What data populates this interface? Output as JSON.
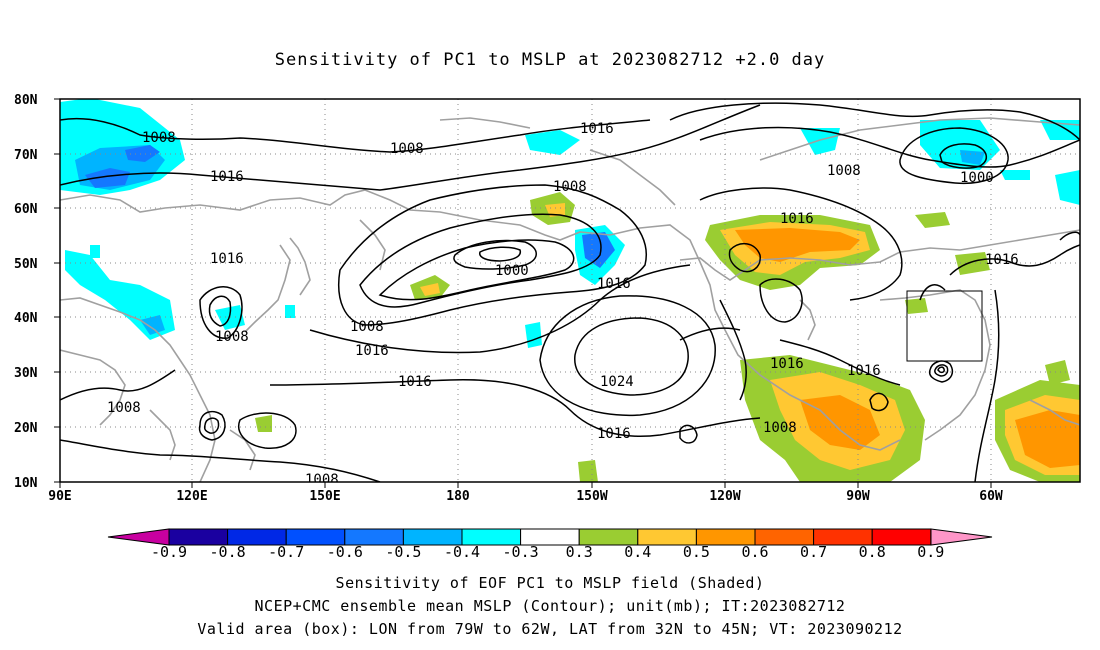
{
  "title": "Sensitivity of PC1 to MSLP at 2023082712 +2.0 day",
  "lat_labels": [
    "80N",
    "70N",
    "60N",
    "50N",
    "40N",
    "30N",
    "20N",
    "10N"
  ],
  "lon_labels": [
    "90E",
    "120E",
    "150E",
    "180",
    "150W",
    "120W",
    "90W",
    "60W"
  ],
  "contour_labels": [
    "1008",
    "1008",
    "1016",
    "1016",
    "1008",
    "1016",
    "1000",
    "1016",
    "1008",
    "1016",
    "1016",
    "1024",
    "1016",
    "1008",
    "1016",
    "1008",
    "1008",
    "1016",
    "1008",
    "1016",
    "1000",
    "1016",
    "1008",
    "1016"
  ],
  "colorbar": {
    "labels": [
      "-0.9",
      "-0.8",
      "-0.7",
      "-0.6",
      "-0.5",
      "-0.4",
      "-0.3",
      "0.3",
      "0.4",
      "0.5",
      "0.6",
      "0.7",
      "0.8",
      "0.9"
    ],
    "colors": [
      "#1a00a0",
      "#0028e6",
      "#0050ff",
      "#1478ff",
      "#00b4ff",
      "#00ffff",
      "#ffffff",
      "#9acd32",
      "#ffc832",
      "#ff9600",
      "#ff6400",
      "#ff3200",
      "#ff0000"
    ],
    "low_extend_color": "#c800a0",
    "high_extend_color": "#ff96c8"
  },
  "captions": [
    "Sensitivity of EOF PC1 to MSLP field (Shaded)",
    "NCEP+CMC ensemble mean MSLP (Contour); unit(mb); IT:2023082712",
    "Valid area (box): LON from 79W to 62W, LAT from 32N to 45N; VT: 2023090212"
  ],
  "colors": {
    "coastline": "#a0a0a0",
    "contour": "#000000",
    "grid": "#888888"
  }
}
